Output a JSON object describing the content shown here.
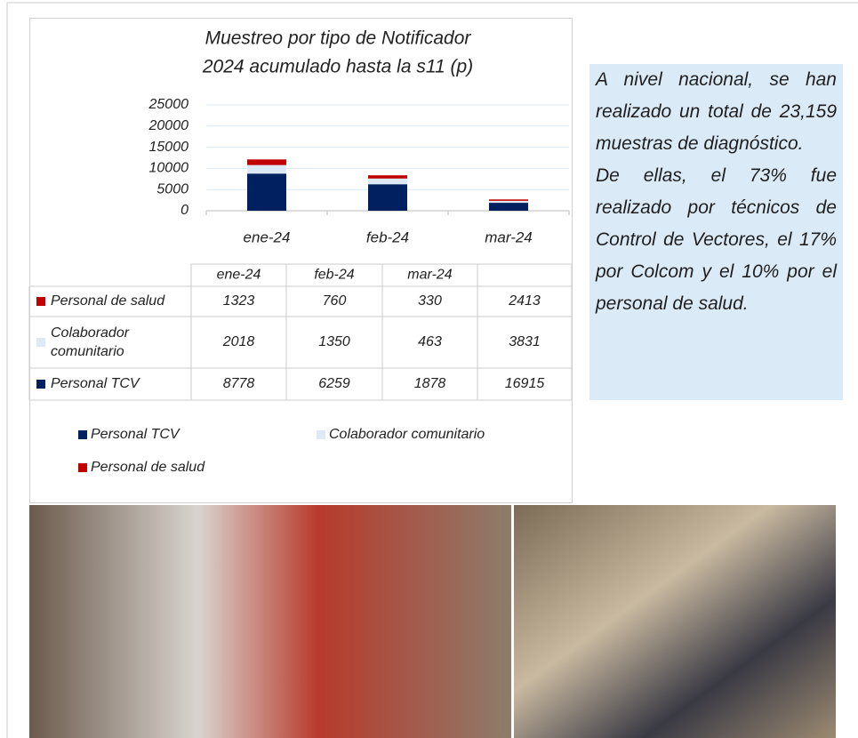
{
  "chart_data": {
    "type": "bar",
    "stacked": true,
    "title": [
      "Muestreo por tipo de Notificador",
      "2024 acumulado hasta la s11 (p)"
    ],
    "categories": [
      "ene-24",
      "feb-24",
      "mar-24"
    ],
    "series": [
      {
        "name": "Personal TCV",
        "color": "#002060",
        "values": [
          8778,
          6259,
          1878
        ],
        "total": 16915
      },
      {
        "name": "Colaborador comunitario",
        "color": "#dde9f6",
        "values": [
          2018,
          1350,
          463
        ],
        "total": 3831
      },
      {
        "name": "Personal de salud",
        "color": "#c00000",
        "values": [
          1323,
          760,
          330
        ],
        "total": 2413
      }
    ],
    "ylim": [
      0,
      25000
    ],
    "yticks": [
      0,
      5000,
      10000,
      15000,
      20000,
      25000
    ],
    "grid": true
  },
  "note": {
    "paragraphs": [
      "A nivel nacional, se han realizado un total de 23,159 muestras de diagnóstico.",
      "De ellas, el 73% fue realizado por técnicos de Control de Vectores, el 17% por Colcom y el 10% por el personal de salud."
    ]
  }
}
